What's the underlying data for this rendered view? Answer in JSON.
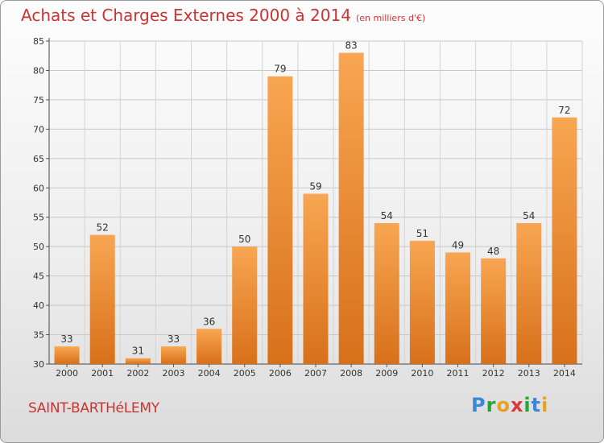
{
  "chart_data": {
    "type": "bar",
    "title": "Achats et Charges Externes 2000 à 2014",
    "subtitle": "(en milliers d'€)",
    "categories": [
      "2000",
      "2001",
      "2002",
      "2003",
      "2004",
      "2005",
      "2006",
      "2007",
      "2008",
      "2009",
      "2010",
      "2011",
      "2012",
      "2013",
      "2014"
    ],
    "values": [
      33,
      52,
      31,
      33,
      36,
      50,
      79,
      59,
      83,
      54,
      51,
      49,
      48,
      54,
      72
    ],
    "ylim": [
      30,
      85
    ],
    "yticks": [
      30,
      35,
      40,
      45,
      50,
      55,
      60,
      65,
      70,
      75,
      80,
      85
    ],
    "grid": true,
    "bar_color": "#f0922e"
  },
  "footer": {
    "place": "SAINT-BARTHéLEMY",
    "logo_letters": [
      "P",
      "r",
      "o",
      "x",
      "i",
      "t",
      "i"
    ]
  }
}
